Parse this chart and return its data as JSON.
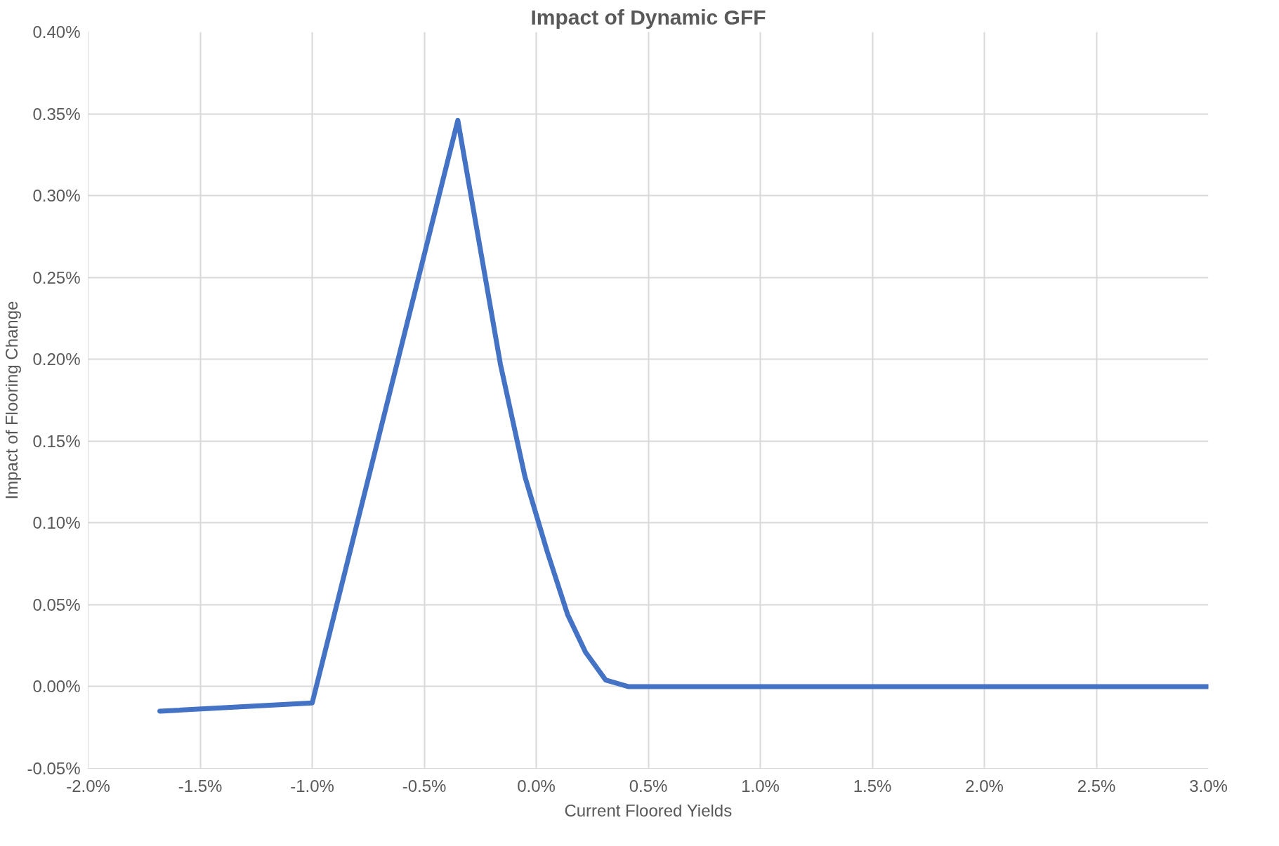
{
  "chart_data": {
    "type": "line",
    "title": "Impact of Dynamic GFF",
    "xlabel": "Current Floored Yields",
    "ylabel": "Impact of Flooring Change",
    "series": [
      {
        "color": "#4472c4",
        "x": [
          -1.68,
          -1.0,
          -0.35,
          -0.16,
          -0.05,
          0.05,
          0.14,
          0.22,
          0.31,
          0.41,
          3.0
        ],
        "values": [
          -0.015,
          -0.01,
          0.346,
          0.197,
          0.128,
          0.082,
          0.044,
          0.021,
          0.004,
          0.0,
          0.0
        ]
      }
    ],
    "xlim": [
      -2.0,
      3.0
    ],
    "ylim": [
      -0.05,
      0.4
    ],
    "xticks": [
      {
        "value": -2.0,
        "label": "-2.0%"
      },
      {
        "value": -1.5,
        "label": "-1.5%"
      },
      {
        "value": -1.0,
        "label": "-1.0%"
      },
      {
        "value": -0.5,
        "label": "-0.5%"
      },
      {
        "value": 0.0,
        "label": "0.0%"
      },
      {
        "value": 0.5,
        "label": "0.5%"
      },
      {
        "value": 1.0,
        "label": "1.0%"
      },
      {
        "value": 1.5,
        "label": "1.5%"
      },
      {
        "value": 2.0,
        "label": "2.0%"
      },
      {
        "value": 2.5,
        "label": "2.5%"
      },
      {
        "value": 3.0,
        "label": "3.0%"
      }
    ],
    "yticks": [
      {
        "value": -0.05,
        "label": "-0.05%"
      },
      {
        "value": 0.0,
        "label": "0.00%"
      },
      {
        "value": 0.05,
        "label": "0.05%"
      },
      {
        "value": 0.1,
        "label": "0.10%"
      },
      {
        "value": 0.15,
        "label": "0.15%"
      },
      {
        "value": 0.2,
        "label": "0.20%"
      },
      {
        "value": 0.25,
        "label": "0.25%"
      },
      {
        "value": 0.3,
        "label": "0.30%"
      },
      {
        "value": 0.35,
        "label": "0.35%"
      },
      {
        "value": 0.4,
        "label": "0.40%"
      }
    ],
    "grid": true,
    "marker": "none",
    "line_style": "solid"
  }
}
